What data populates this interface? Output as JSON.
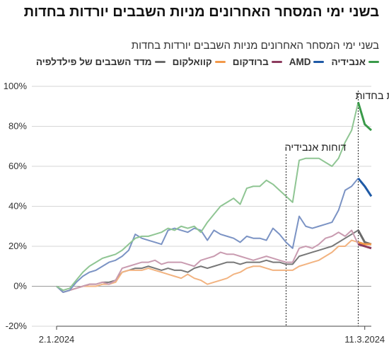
{
  "title": "בשני ימי המסחר האחרונים מניות השבבים יורדות בחדות",
  "subtitle": "בשני ימי המסחר האחרונים מניות השבבים יורדות בחדות",
  "legend": [
    {
      "label": "אנבידיה",
      "color": "#3a9a4a"
    },
    {
      "label": "AMD",
      "color": "#1f5aa6"
    },
    {
      "label": "ברודקום",
      "color": "#8c3b5e"
    },
    {
      "label": "קוואלקום",
      "color": "#f2994a"
    },
    {
      "label": "מדד השבבים של פילדלפיה",
      "color": "#6b6b6b"
    }
  ],
  "chart_data": {
    "type": "line",
    "title": "בשני ימי המסחר האחרונים מניות השבבים יורדות בחדות",
    "xlabel": "",
    "ylabel": "",
    "x_ticks": [
      "2.1.2024",
      "11.3.2024"
    ],
    "y_ticks": [
      "100%",
      "80%",
      "60%",
      "40%",
      "20%",
      "0%",
      "-20%"
    ],
    "ylim": [
      -20,
      100
    ],
    "grid": true,
    "legend_position": "top",
    "x": [
      "2.1.2024",
      "3.1",
      "4.1",
      "5.1",
      "8.1",
      "9.1",
      "10.1",
      "11.1",
      "12.1",
      "16.1",
      "17.1",
      "18.1",
      "19.1",
      "22.1",
      "23.1",
      "24.1",
      "25.1",
      "26.1",
      "29.1",
      "30.1",
      "31.1",
      "1.2",
      "2.2",
      "5.2",
      "6.2",
      "7.2",
      "8.2",
      "9.2",
      "12.2",
      "13.2",
      "14.2",
      "15.2",
      "16.2",
      "20.2",
      "21.2",
      "22.2",
      "23.2",
      "26.2",
      "27.2",
      "28.2",
      "29.2",
      "1.3",
      "4.3",
      "5.3",
      "6.3",
      "7.3",
      "8.3",
      "11.3.2024",
      "12.3"
    ],
    "series": [
      {
        "name": "אנבידיה",
        "color": "#8fc593",
        "values": [
          0,
          -2,
          -1,
          3,
          7,
          10,
          12,
          14,
          15,
          16,
          18,
          21,
          24,
          25,
          25,
          26,
          27,
          29,
          28,
          30,
          29,
          30,
          27,
          32,
          36,
          40,
          42,
          44,
          41,
          49,
          50,
          50,
          53,
          51,
          48,
          45,
          42,
          63,
          64,
          64,
          64,
          62,
          60,
          64,
          72,
          78,
          92,
          81,
          78
        ]
      },
      {
        "name": "AMD",
        "color": "#7b93c4",
        "values": [
          0,
          -3,
          -2,
          2,
          5,
          7,
          8,
          10,
          12,
          13,
          15,
          18,
          26,
          24,
          23,
          22,
          21,
          28,
          29,
          28,
          27,
          29,
          28,
          23,
          28,
          26,
          25,
          24,
          22,
          25,
          24,
          24,
          23,
          29,
          26,
          22,
          19,
          35,
          30,
          29,
          30,
          31,
          32,
          38,
          48,
          50,
          54,
          50,
          45
        ]
      },
      {
        "name": "ברודקום",
        "color": "#c99bb0",
        "values": [
          0,
          -3,
          -2,
          -1,
          0,
          1,
          1,
          2,
          1,
          3,
          9,
          10,
          11,
          12,
          12,
          13,
          11,
          12,
          12,
          12,
          11,
          10,
          13,
          14,
          15,
          17,
          16,
          16,
          15,
          14,
          13,
          14,
          15,
          14,
          13,
          12,
          12,
          19,
          20,
          19,
          21,
          24,
          25,
          27,
          25,
          28,
          21,
          20,
          19
        ]
      },
      {
        "name": "קוואלקום",
        "color": "#f2b380",
        "values": [
          0,
          -3,
          -2,
          -1,
          0,
          0,
          0,
          1,
          1,
          2,
          7,
          8,
          8,
          8,
          9,
          8,
          7,
          6,
          5,
          4,
          6,
          4,
          3,
          1,
          2,
          3,
          4,
          6,
          7,
          9,
          10,
          10,
          9,
          8,
          8,
          8,
          8,
          10,
          11,
          12,
          13,
          15,
          17,
          20,
          20,
          23,
          22,
          21,
          21
        ]
      },
      {
        "name": "מדד השבבים של פילדלפיה",
        "color": "#777777",
        "values": [
          0,
          -3,
          -2,
          -1,
          0,
          1,
          1,
          2,
          2,
          3,
          7,
          8,
          9,
          9,
          10,
          9,
          8,
          9,
          8,
          8,
          7,
          9,
          10,
          9,
          10,
          11,
          12,
          12,
          11,
          12,
          12,
          12,
          13,
          12,
          12,
          11,
          11,
          15,
          16,
          17,
          18,
          19,
          20,
          22,
          24,
          26,
          28,
          22,
          21
        ]
      }
    ],
    "annotations": [
      {
        "label": "דוחות אנבידיה",
        "at": "22.2"
      },
      {
        "label": "אחרי שזינקו לשיא: מניות השבבים יורדות בחדות",
        "at": "8.3"
      }
    ]
  }
}
